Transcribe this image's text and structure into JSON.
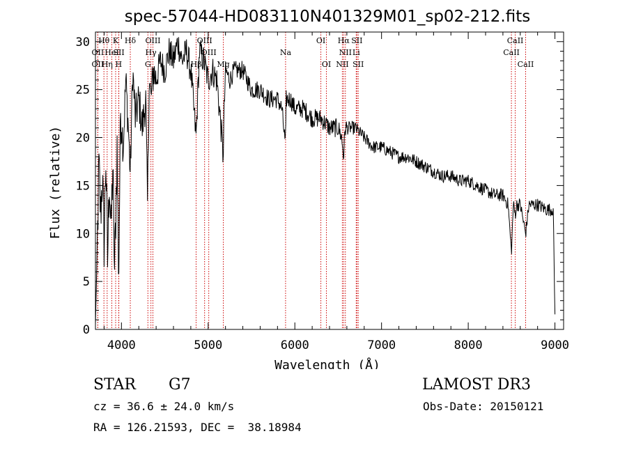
{
  "chart_data": {
    "type": "line",
    "title": "spec-57044-HD083110N401329M01_sp02-212.fits",
    "xlabel": "Wavelength (Å)",
    "ylabel": "Flux (relative)",
    "xlim": [
      3700,
      9100
    ],
    "ylim": [
      0,
      31
    ],
    "xticks": [
      4000,
      5000,
      6000,
      7000,
      8000,
      9000
    ],
    "yticks": [
      0,
      5,
      10,
      15,
      20,
      25,
      30
    ],
    "line_color": "#000000",
    "marker_color": "#cc0000",
    "spectrum": {
      "name": "flux",
      "x": [
        3700,
        3720,
        3740,
        3760,
        3780,
        3800,
        3820,
        3840,
        3860,
        3880,
        3900,
        3920,
        3933,
        3950,
        3968,
        3990,
        4020,
        4050,
        4080,
        4102,
        4130,
        4160,
        4200,
        4240,
        4280,
        4300,
        4320,
        4340,
        4370,
        4400,
        4450,
        4500,
        4550,
        4600,
        4650,
        4700,
        4750,
        4800,
        4861,
        4900,
        4950,
        5000,
        5050,
        5100,
        5150,
        5172,
        5183,
        5200,
        5250,
        5300,
        5400,
        5500,
        5600,
        5700,
        5800,
        5850,
        5893,
        5900,
        5950,
        6000,
        6100,
        6200,
        6300,
        6400,
        6500,
        6540,
        6563,
        6580,
        6600,
        6650,
        6700,
        6800,
        6900,
        7000,
        7100,
        7200,
        7300,
        7400,
        7500,
        7600,
        7700,
        7800,
        7900,
        8000,
        8100,
        8200,
        8300,
        8400,
        8460,
        8498,
        8520,
        8542,
        8560,
        8600,
        8662,
        8700,
        8800,
        8900,
        8980,
        9000
      ],
      "y": [
        0.5,
        8,
        17,
        12,
        16,
        9,
        18,
        7,
        16,
        10,
        17,
        6,
        11,
        19,
        5,
        23,
        19,
        26,
        21,
        16,
        27,
        22,
        24,
        21,
        24,
        13,
        26,
        24,
        27,
        26,
        28,
        27,
        29,
        28,
        30,
        28,
        29,
        27,
        20,
        29,
        28,
        26,
        27,
        26,
        21,
        18,
        22,
        27,
        26,
        27,
        27,
        25,
        25,
        24,
        24,
        23,
        19,
        24,
        24,
        23,
        23,
        22,
        22,
        21,
        21,
        20,
        18,
        21,
        21,
        21,
        21,
        20,
        19,
        19,
        18.5,
        18,
        18,
        17.5,
        17,
        16.5,
        16,
        16,
        15.5,
        15.5,
        15,
        14.5,
        14,
        14,
        13,
        8,
        13,
        12,
        13,
        13,
        10,
        13,
        13,
        12.5,
        12.5,
        1.5
      ]
    },
    "spectral_lines": [
      {
        "label": "Hθ",
        "wavelength": 3798,
        "row": 0
      },
      {
        "label": "Hη",
        "wavelength": 3835,
        "row": 2
      },
      {
        "label": "OII",
        "wavelength": 3727,
        "row": 1
      },
      {
        "label": "OII",
        "wavelength": 3727,
        "row": 2
      },
      {
        "label": "HeI",
        "wavelength": 3889,
        "row": 1
      },
      {
        "label": "K",
        "wavelength": 3933,
        "row": 0
      },
      {
        "label": "SII",
        "wavelength": 3970,
        "row": 1
      },
      {
        "label": "H",
        "wavelength": 3968,
        "row": 2
      },
      {
        "label": "Hδ",
        "wavelength": 4102,
        "row": 0
      },
      {
        "label": "OIII",
        "wavelength": 4363,
        "row": 0
      },
      {
        "label": "Hγ",
        "wavelength": 4340,
        "row": 1
      },
      {
        "label": "G",
        "wavelength": 4305,
        "row": 2
      },
      {
        "label": "OIII",
        "wavelength": 4959,
        "row": 0
      },
      {
        "label": "OIII",
        "wavelength": 5007,
        "row": 1
      },
      {
        "label": "Hβ",
        "wavelength": 4861,
        "row": 2
      },
      {
        "label": "Mg",
        "wavelength": 5175,
        "row": 2
      },
      {
        "label": "Na",
        "wavelength": 5893,
        "row": 1
      },
      {
        "label": "OI",
        "wavelength": 6300,
        "row": 0
      },
      {
        "label": "OI",
        "wavelength": 6364,
        "row": 2
      },
      {
        "label": "Hα",
        "wavelength": 6563,
        "row": 0
      },
      {
        "label": "NII",
        "wavelength": 6583,
        "row": 1
      },
      {
        "label": "NII",
        "wavelength": 6548,
        "row": 2
      },
      {
        "label": "SII",
        "wavelength": 6716,
        "row": 0
      },
      {
        "label": "Li",
        "wavelength": 6708,
        "row": 1
      },
      {
        "label": "SII",
        "wavelength": 6731,
        "row": 2
      },
      {
        "label": "CaII",
        "wavelength": 8542,
        "row": 0
      },
      {
        "label": "CaII",
        "wavelength": 8498,
        "row": 1
      },
      {
        "label": "CaII",
        "wavelength": 8662,
        "row": 2
      }
    ]
  },
  "info": {
    "object_class": "STAR",
    "subclass": "G7",
    "survey": "LAMOST DR3",
    "redshift": "cz = 36.6 ± 24.0 km/s",
    "obs_date": "Obs-Date: 20150121",
    "coords": "RA = 126.21593, DEC =  38.18984"
  }
}
